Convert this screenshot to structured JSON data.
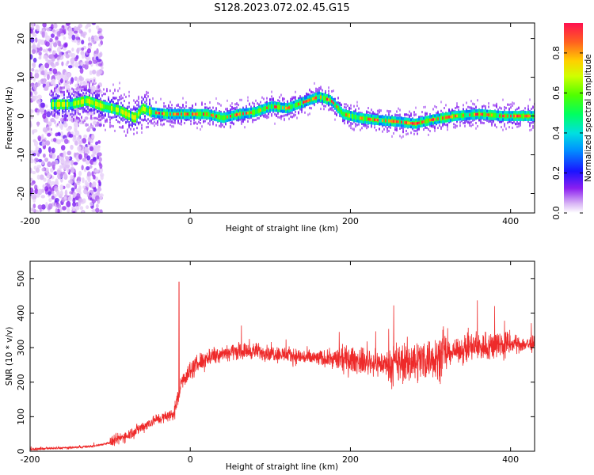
{
  "title": "S128.2023.072.02.45.G15",
  "chart_data": [
    {
      "type": "heatmap",
      "xlabel": "Height of straight line (km)",
      "ylabel": "Frequency (Hz)",
      "xlim": [
        -200,
        430
      ],
      "ylim": [
        -25,
        24
      ],
      "xticks": [
        -200,
        0,
        200,
        400
      ],
      "yticks": [
        -20,
        -10,
        0,
        10,
        20
      ],
      "colorbar": {
        "label": "Normalized spectral amplitude",
        "range": [
          0,
          0.95
        ],
        "ticks": [
          0.0,
          0.2,
          0.4,
          0.6,
          0.8
        ]
      },
      "ridge": {
        "x": [
          -170,
          -150,
          -130,
          -110,
          -90,
          -70,
          -60,
          -50,
          -30,
          0,
          20,
          40,
          60,
          80,
          100,
          120,
          140,
          160,
          175,
          190,
          210,
          230,
          260,
          280,
          300,
          330,
          360,
          390,
          420,
          430
        ],
        "y": [
          3.0,
          3.0,
          4.0,
          2.5,
          1.5,
          -0.5,
          2.0,
          1.0,
          0.5,
          0.5,
          0.5,
          -0.5,
          0.5,
          1.0,
          2.5,
          2.0,
          3.5,
          5.0,
          4.0,
          0.5,
          -0.5,
          -1.0,
          -1.5,
          -2.0,
          -1.0,
          0.0,
          0.5,
          0.0,
          0.0,
          0.0
        ]
      }
    },
    {
      "type": "line",
      "xlabel": "Height of straight line (km)",
      "ylabel": "SNR (10 * v/v)",
      "xlim": [
        -200,
        430
      ],
      "ylim": [
        0,
        550
      ],
      "xticks": [
        -200,
        0,
        200,
        400
      ],
      "yticks": [
        0,
        100,
        200,
        300,
        400,
        500
      ],
      "series": [
        {
          "color": "#ee2a2a",
          "x": [
            -200,
            -180,
            -150,
            -120,
            -100,
            -80,
            -60,
            -45,
            -30,
            -20,
            -10,
            0,
            10,
            20,
            30,
            40,
            60,
            80,
            100,
            150,
            200,
            250,
            300,
            350,
            400,
            430
          ],
          "y": [
            5,
            8,
            10,
            15,
            25,
            45,
            70,
            90,
            100,
            110,
            210,
            230,
            255,
            270,
            280,
            285,
            290,
            290,
            285,
            270,
            265,
            250,
            270,
            300,
            310,
            310
          ]
        }
      ],
      "annotations": {
        "spike_x": -14,
        "spike_y": 490
      }
    }
  ]
}
